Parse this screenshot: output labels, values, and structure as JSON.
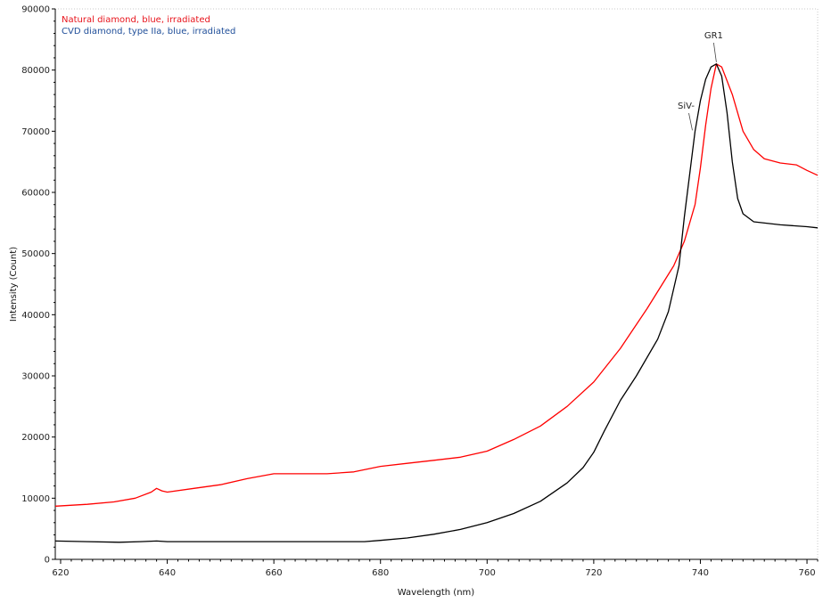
{
  "chart_data": {
    "type": "line",
    "xlabel": "Wavelength (nm)",
    "ylabel": "Intensity (Count)",
    "xlim": [
      619,
      762
    ],
    "ylim": [
      0,
      90000
    ],
    "grid": false,
    "legend_position": "top-left",
    "x_ticks": [
      "620",
      "640",
      "660",
      "680",
      "700",
      "720",
      "740",
      "760"
    ],
    "y_ticks": [
      "0",
      "10000",
      "20000",
      "30000",
      "40000",
      "50000",
      "60000",
      "70000",
      "80000",
      "90000"
    ],
    "series": [
      {
        "name": "Natural diamond, blue, irradiated",
        "color": "#ff0000",
        "points": [
          [
            619,
            8700
          ],
          [
            625,
            9000
          ],
          [
            630,
            9400
          ],
          [
            634,
            10000
          ],
          [
            637,
            11000
          ],
          [
            638,
            11600
          ],
          [
            639,
            11200
          ],
          [
            640,
            11000
          ],
          [
            645,
            11600
          ],
          [
            650,
            12200
          ],
          [
            655,
            13200
          ],
          [
            660,
            14000
          ],
          [
            665,
            14000
          ],
          [
            670,
            14000
          ],
          [
            675,
            14300
          ],
          [
            680,
            15200
          ],
          [
            685,
            15700
          ],
          [
            690,
            16200
          ],
          [
            695,
            16700
          ],
          [
            700,
            17700
          ],
          [
            705,
            19600
          ],
          [
            710,
            21800
          ],
          [
            715,
            25000
          ],
          [
            720,
            29000
          ],
          [
            725,
            34500
          ],
          [
            730,
            41000
          ],
          [
            735,
            48000
          ],
          [
            737,
            52000
          ],
          [
            739,
            58000
          ],
          [
            740,
            64000
          ],
          [
            741,
            71000
          ],
          [
            742,
            77000
          ],
          [
            743,
            81000
          ],
          [
            744,
            80500
          ],
          [
            746,
            76000
          ],
          [
            748,
            70000
          ],
          [
            750,
            67000
          ],
          [
            752,
            65500
          ],
          [
            755,
            64800
          ],
          [
            758,
            64500
          ],
          [
            760,
            63600
          ],
          [
            762,
            62800
          ]
        ]
      },
      {
        "name": "CVD diamond, type IIa, blue, irradiated",
        "color": "#000000",
        "points": [
          [
            619,
            3000
          ],
          [
            625,
            2900
          ],
          [
            631,
            2800
          ],
          [
            635,
            2900
          ],
          [
            638,
            3000
          ],
          [
            640,
            2900
          ],
          [
            650,
            2900
          ],
          [
            660,
            2900
          ],
          [
            670,
            2900
          ],
          [
            677,
            2900
          ],
          [
            680,
            3100
          ],
          [
            685,
            3500
          ],
          [
            690,
            4100
          ],
          [
            695,
            4900
          ],
          [
            700,
            6000
          ],
          [
            705,
            7500
          ],
          [
            710,
            9500
          ],
          [
            715,
            12500
          ],
          [
            718,
            15000
          ],
          [
            720,
            17500
          ],
          [
            722,
            21000
          ],
          [
            725,
            26000
          ],
          [
            728,
            30000
          ],
          [
            732,
            36000
          ],
          [
            734,
            40500
          ],
          [
            736,
            48000
          ],
          [
            737,
            56000
          ],
          [
            738,
            63000
          ],
          [
            739,
            70000
          ],
          [
            740,
            75000
          ],
          [
            741,
            78500
          ],
          [
            742,
            80500
          ],
          [
            743,
            81000
          ],
          [
            744,
            79000
          ],
          [
            745,
            73000
          ],
          [
            746,
            65000
          ],
          [
            747,
            59000
          ],
          [
            748,
            56500
          ],
          [
            750,
            55200
          ],
          [
            755,
            54700
          ],
          [
            760,
            54400
          ],
          [
            762,
            54200
          ]
        ]
      }
    ],
    "annotations": [
      {
        "text": "GR1",
        "x": 743,
        "y": 81000
      },
      {
        "text": "SiV-",
        "x": 738.5,
        "y": 70000
      }
    ]
  }
}
